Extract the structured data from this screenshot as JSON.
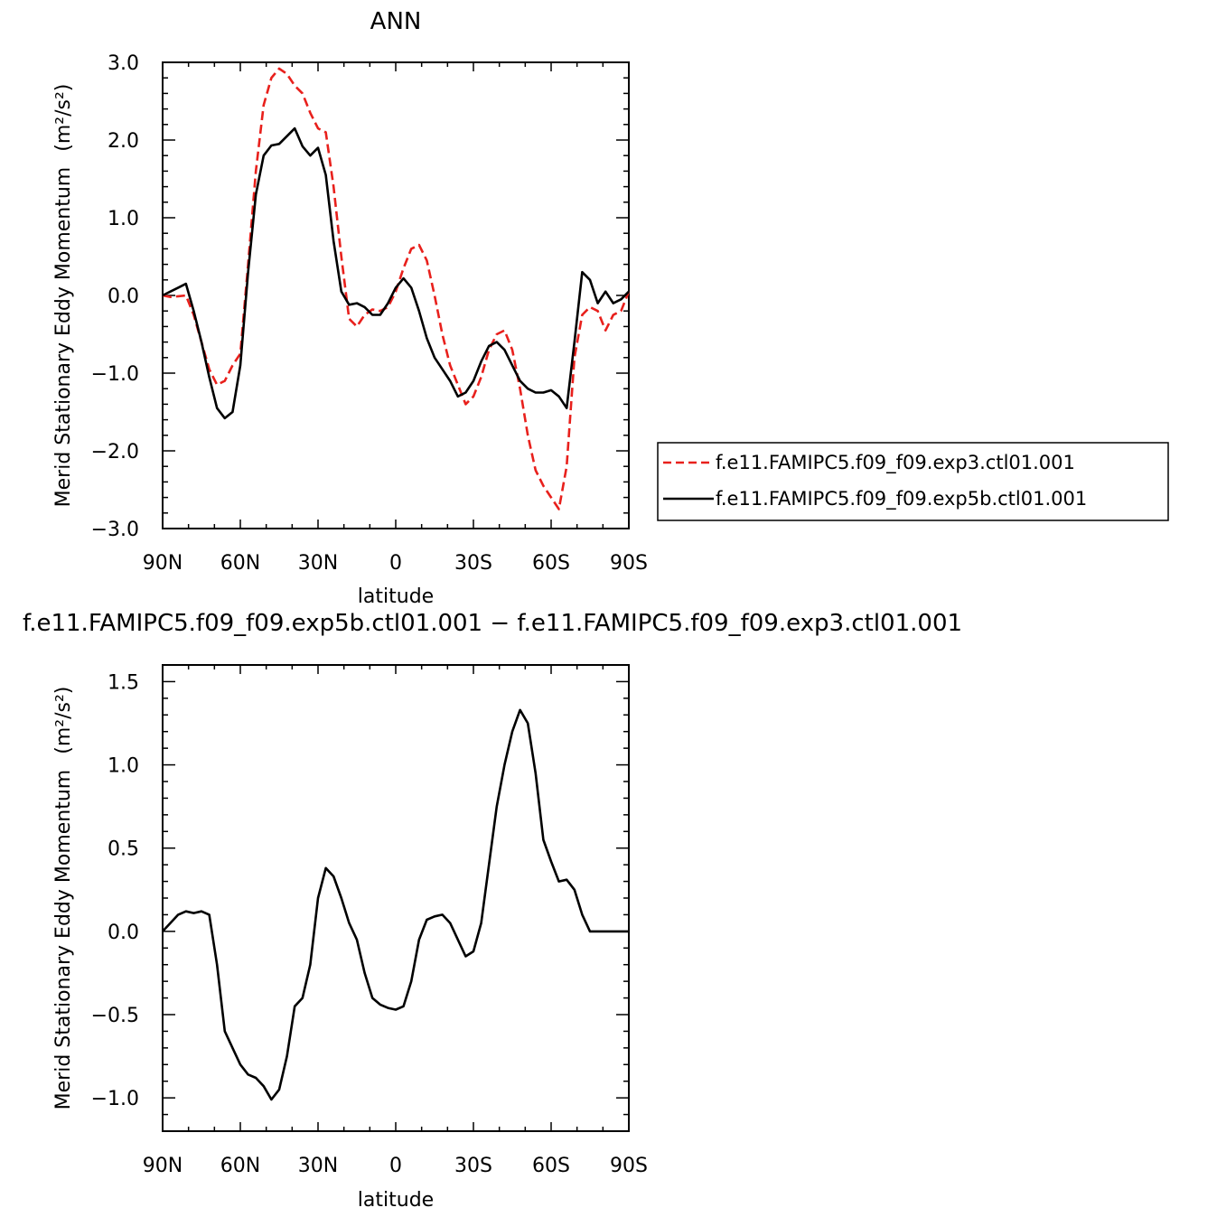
{
  "chart_data": [
    {
      "type": "line",
      "title": "ANN",
      "xlabel": "latitude",
      "ylabel": "Merid Stationary Eddy Momentum",
      "ylabel_units": "(m²/s²)",
      "xlim": [
        90,
        -90
      ],
      "ylim": [
        -3.0,
        3.0
      ],
      "x_ticks": [
        90,
        60,
        30,
        0,
        -30,
        -60,
        -90
      ],
      "x_tick_labels": [
        "90N",
        "60N",
        "30N",
        "0",
        "30S",
        "60S",
        "90S"
      ],
      "y_ticks": [
        3.0,
        2.0,
        1.0,
        0.0,
        -1.0,
        -2.0,
        -3.0
      ],
      "y_tick_labels": [
        "3.0",
        "2.0",
        "1.0",
        "0.0",
        "−1.0",
        "−2.0",
        "−3.0"
      ],
      "grid": false,
      "legend_position": "right",
      "series": [
        {
          "name": "f.e11.FAMIPC5.f09_f09.exp3.ctl01.001",
          "color": "#e8201c",
          "dash": "dashed",
          "x": [
            90,
            87,
            84,
            81,
            78,
            75,
            72,
            69,
            66,
            63,
            60,
            57,
            54,
            51,
            48,
            45,
            42,
            39,
            36,
            33,
            30,
            27,
            24,
            21,
            18,
            15,
            12,
            9,
            6,
            3,
            0,
            -3,
            -6,
            -9,
            -12,
            -15,
            -18,
            -21,
            -24,
            -27,
            -30,
            -33,
            -36,
            -39,
            -42,
            -45,
            -48,
            -51,
            -54,
            -57,
            -60,
            -63,
            -66,
            -69,
            -72,
            -75,
            -78,
            -81,
            -84,
            -87,
            -90
          ],
          "y": [
            0.0,
            -0.02,
            -0.01,
            0.0,
            -0.25,
            -0.6,
            -0.95,
            -1.15,
            -1.1,
            -0.9,
            -0.75,
            0.4,
            1.6,
            2.45,
            2.8,
            2.92,
            2.85,
            2.7,
            2.6,
            2.35,
            2.15,
            2.1,
            1.4,
            0.5,
            -0.3,
            -0.4,
            -0.25,
            -0.18,
            -0.2,
            -0.15,
            0.05,
            0.35,
            0.6,
            0.65,
            0.45,
            0.0,
            -0.5,
            -0.9,
            -1.15,
            -1.4,
            -1.3,
            -1.05,
            -0.7,
            -0.5,
            -0.45,
            -0.7,
            -1.2,
            -1.8,
            -2.25,
            -2.45,
            -2.6,
            -2.75,
            -2.2,
            -0.8,
            -0.25,
            -0.15,
            -0.2,
            -0.45,
            -0.25,
            -0.2,
            0.05
          ]
        },
        {
          "name": "f.e11.FAMIPC5.f09_f09.exp5b.ctl01.001",
          "color": "#000000",
          "dash": "solid",
          "x": [
            90,
            87,
            84,
            81,
            78,
            75,
            72,
            69,
            66,
            63,
            60,
            57,
            54,
            51,
            48,
            45,
            42,
            39,
            36,
            33,
            30,
            27,
            24,
            21,
            18,
            15,
            12,
            9,
            6,
            3,
            0,
            -3,
            -6,
            -9,
            -12,
            -15,
            -18,
            -21,
            -24,
            -27,
            -30,
            -33,
            -36,
            -39,
            -42,
            -45,
            -48,
            -51,
            -54,
            -57,
            -60,
            -63,
            -66,
            -69,
            -72,
            -75,
            -78,
            -81,
            -84,
            -87,
            -90
          ],
          "y": [
            0.0,
            0.05,
            0.1,
            0.15,
            -0.2,
            -0.6,
            -1.05,
            -1.45,
            -1.58,
            -1.5,
            -0.9,
            0.3,
            1.3,
            1.8,
            1.93,
            1.95,
            2.05,
            2.15,
            1.92,
            1.8,
            1.9,
            1.55,
            0.7,
            0.05,
            -0.12,
            -0.1,
            -0.15,
            -0.25,
            -0.25,
            -0.1,
            0.1,
            0.22,
            0.1,
            -0.2,
            -0.55,
            -0.8,
            -0.95,
            -1.1,
            -1.3,
            -1.25,
            -1.1,
            -0.85,
            -0.65,
            -0.6,
            -0.7,
            -0.9,
            -1.1,
            -1.2,
            -1.25,
            -1.25,
            -1.22,
            -1.3,
            -1.45,
            -0.6,
            0.3,
            0.2,
            -0.1,
            0.05,
            -0.1,
            -0.05,
            0.05
          ]
        }
      ]
    },
    {
      "type": "line",
      "title": "f.e11.FAMIPC5.f09_f09.exp5b.ctl01.001 − f.e11.FAMIPC5.f09_f09.exp3.ctl01.001",
      "xlabel": "latitude",
      "ylabel": "Merid Stationary Eddy Momentum",
      "ylabel_units": "(m²/s²)",
      "xlim": [
        90,
        -90
      ],
      "ylim": [
        -1.2,
        1.6
      ],
      "x_ticks": [
        90,
        60,
        30,
        0,
        -30,
        -60,
        -90
      ],
      "x_tick_labels": [
        "90N",
        "60N",
        "30N",
        "0",
        "30S",
        "60S",
        "90S"
      ],
      "y_ticks": [
        1.5,
        1.0,
        0.5,
        0.0,
        -0.5,
        -1.0
      ],
      "y_tick_labels": [
        "1.5",
        "1.0",
        "0.5",
        "0.0",
        "−0.5",
        "−1.0"
      ],
      "grid": false,
      "series": [
        {
          "color": "#000000",
          "dash": "solid",
          "x": [
            90,
            87,
            84,
            81,
            78,
            75,
            72,
            69,
            66,
            63,
            60,
            57,
            54,
            51,
            48,
            45,
            42,
            39,
            36,
            33,
            30,
            27,
            24,
            21,
            18,
            15,
            12,
            9,
            6,
            3,
            0,
            -3,
            -6,
            -9,
            -12,
            -15,
            -18,
            -21,
            -24,
            -27,
            -30,
            -33,
            -36,
            -39,
            -42,
            -45,
            -48,
            -51,
            -54,
            -57,
            -60,
            -63,
            -66,
            -69,
            -72,
            -75,
            -78,
            -81,
            -84,
            -87,
            -90
          ],
          "y": [
            0.0,
            0.05,
            0.1,
            0.12,
            0.11,
            0.12,
            0.1,
            -0.2,
            -0.6,
            -0.7,
            -0.8,
            -0.86,
            -0.88,
            -0.93,
            -1.01,
            -0.95,
            -0.75,
            -0.45,
            -0.4,
            -0.2,
            0.2,
            0.38,
            0.33,
            0.2,
            0.05,
            -0.05,
            -0.25,
            -0.4,
            -0.44,
            -0.46,
            -0.47,
            -0.45,
            -0.3,
            -0.05,
            0.07,
            0.09,
            0.1,
            0.05,
            -0.05,
            -0.15,
            -0.12,
            0.05,
            0.4,
            0.75,
            1.0,
            1.2,
            1.33,
            1.25,
            0.95,
            0.55,
            0.42,
            0.3,
            0.31,
            0.25,
            0.1,
            0.0,
            0.0,
            0.0,
            0.0,
            0.0,
            0.0
          ]
        }
      ]
    }
  ]
}
